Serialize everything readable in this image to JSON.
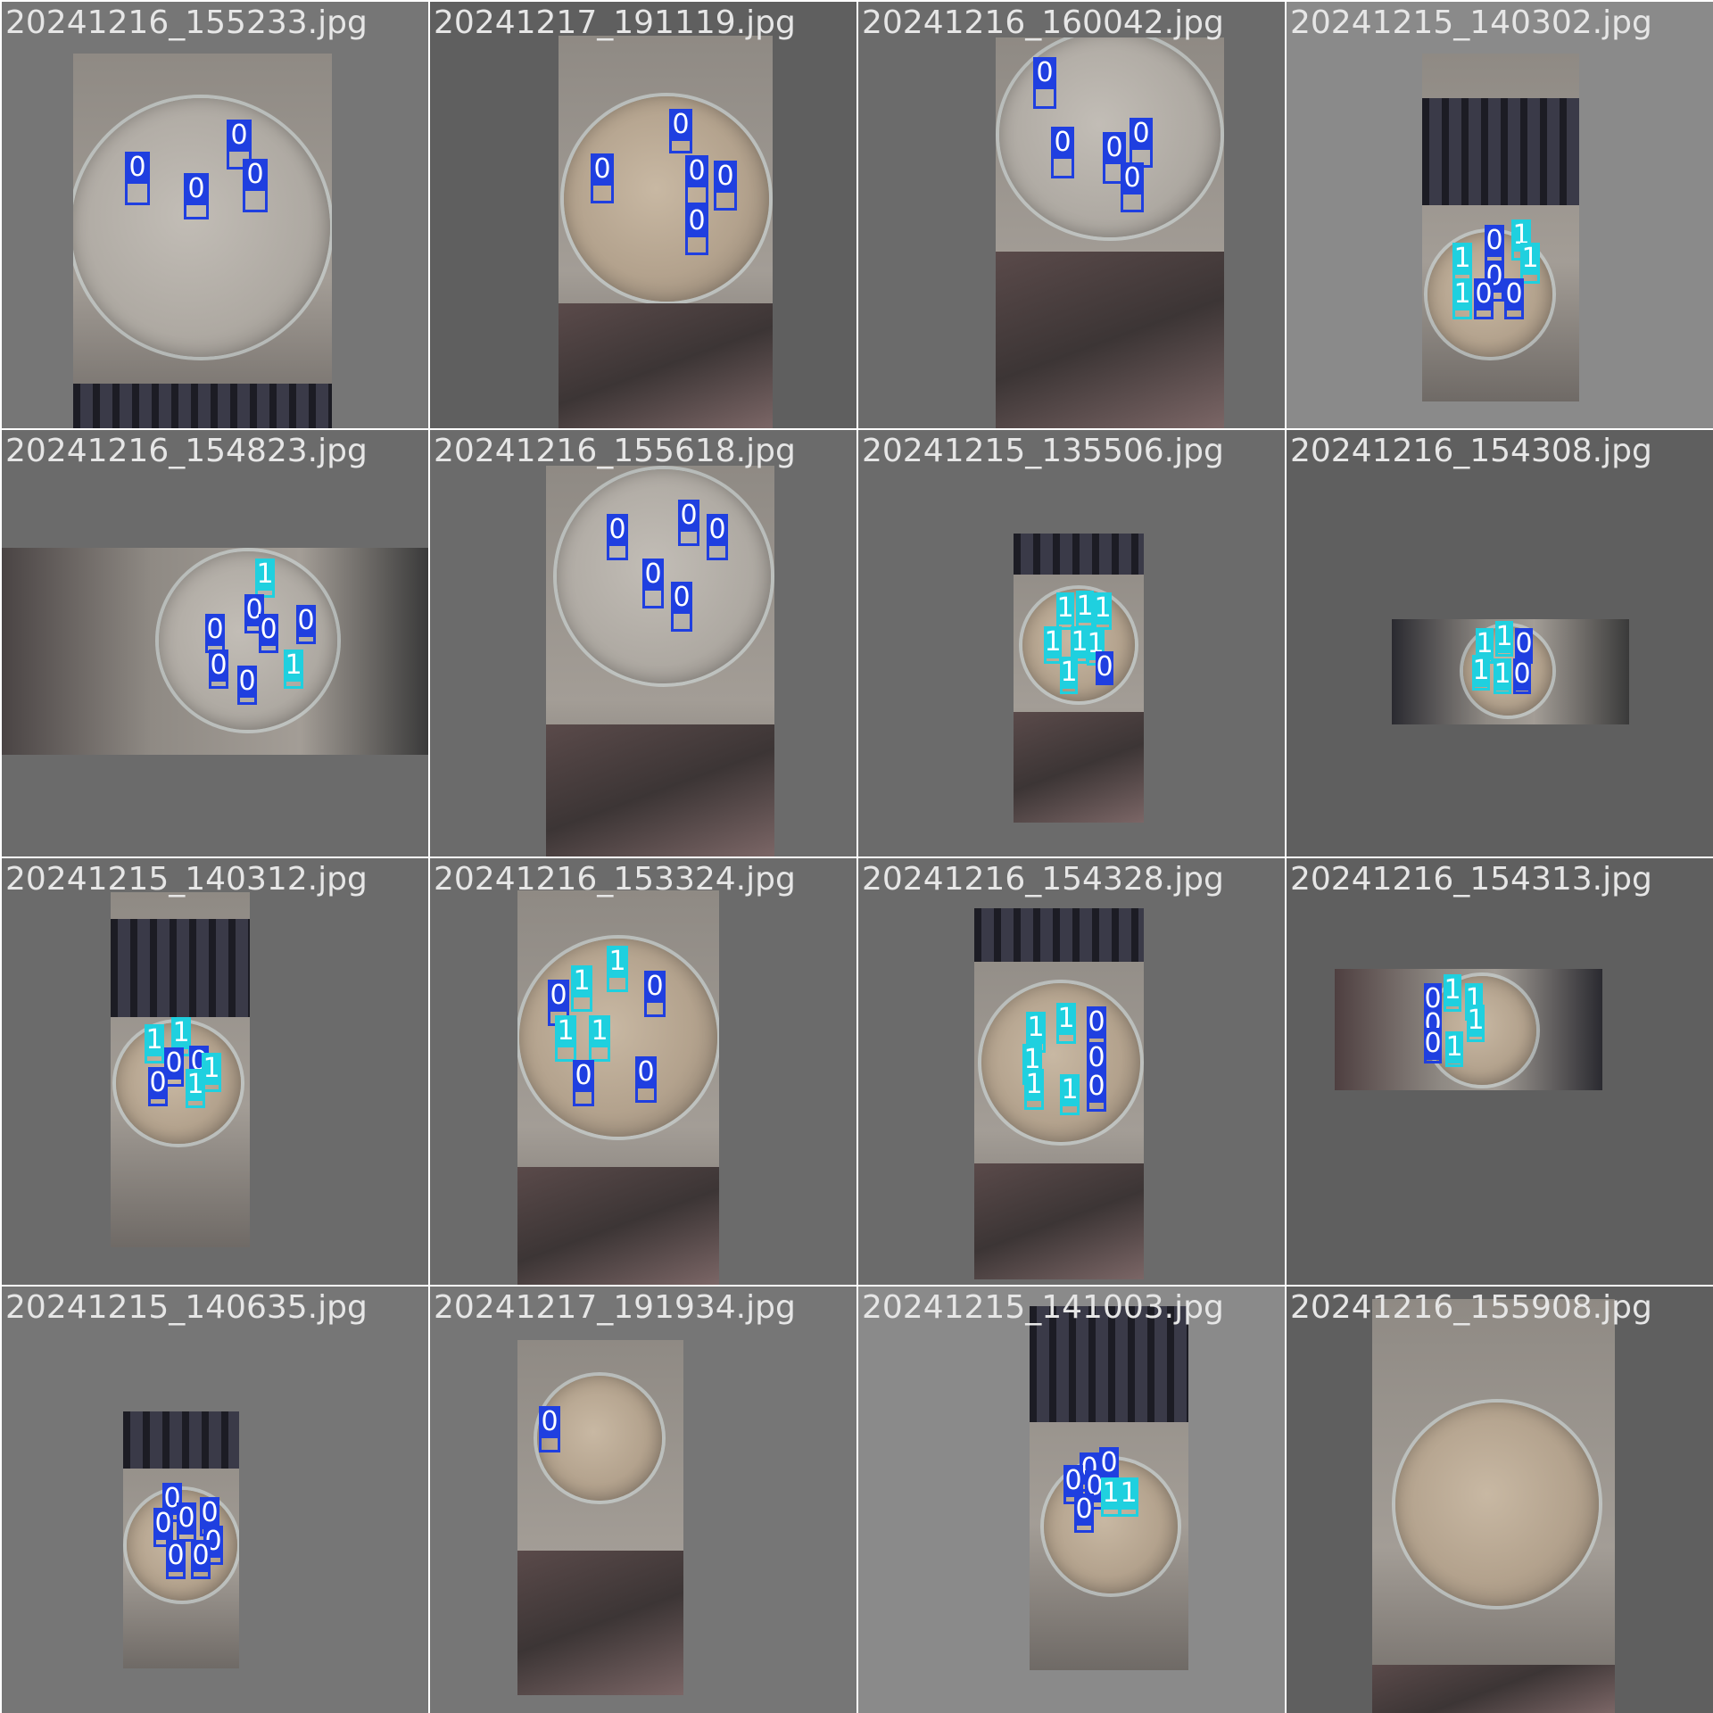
{
  "colors": {
    "class0": "#1f3fe0",
    "class1": "#1fd0df",
    "label_text": "#e6e6e6"
  },
  "tiles": [
    {
      "filename": "20241216_155233.jpg",
      "boxes": [
        {
          "cls": "0"
        },
        {
          "cls": "0"
        },
        {
          "cls": "0"
        },
        {
          "cls": "0"
        }
      ]
    },
    {
      "filename": "20241217_191119.jpg",
      "boxes": [
        {
          "cls": "0"
        },
        {
          "cls": "0"
        },
        {
          "cls": "0"
        },
        {
          "cls": "0"
        },
        {
          "cls": "0"
        }
      ]
    },
    {
      "filename": "20241216_160042.jpg",
      "boxes": [
        {
          "cls": "0"
        },
        {
          "cls": "0"
        },
        {
          "cls": "0"
        },
        {
          "cls": "0"
        },
        {
          "cls": "0"
        }
      ]
    },
    {
      "filename": "20241215_140302.jpg",
      "boxes": [
        {
          "cls": "1"
        },
        {
          "cls": "0"
        },
        {
          "cls": "1"
        },
        {
          "cls": "0"
        },
        {
          "cls": "1"
        },
        {
          "cls": "1"
        },
        {
          "cls": "0"
        },
        {
          "cls": "0"
        }
      ]
    },
    {
      "filename": "20241216_154823.jpg",
      "boxes": [
        {
          "cls": "1"
        },
        {
          "cls": "0"
        },
        {
          "cls": "0"
        },
        {
          "cls": "0"
        },
        {
          "cls": "0"
        },
        {
          "cls": "0"
        },
        {
          "cls": "1"
        },
        {
          "cls": "0"
        }
      ]
    },
    {
      "filename": "20241216_155618.jpg",
      "boxes": [
        {
          "cls": "0"
        },
        {
          "cls": "0"
        },
        {
          "cls": "0"
        },
        {
          "cls": "0"
        },
        {
          "cls": "0"
        }
      ]
    },
    {
      "filename": "20241215_135506.jpg",
      "boxes": [
        {
          "cls": "1"
        },
        {
          "cls": "1"
        },
        {
          "cls": "1"
        },
        {
          "cls": "1"
        },
        {
          "cls": "1"
        },
        {
          "cls": "1"
        },
        {
          "cls": "1"
        },
        {
          "cls": "0"
        }
      ]
    },
    {
      "filename": "20241216_154308.jpg",
      "boxes": [
        {
          "cls": "1"
        },
        {
          "cls": "1"
        },
        {
          "cls": "0"
        },
        {
          "cls": "1"
        },
        {
          "cls": "1"
        },
        {
          "cls": "0"
        }
      ]
    },
    {
      "filename": "20241215_140312.jpg",
      "boxes": [
        {
          "cls": "1"
        },
        {
          "cls": "1"
        },
        {
          "cls": "0"
        },
        {
          "cls": "0"
        },
        {
          "cls": "0"
        },
        {
          "cls": "1"
        },
        {
          "cls": "1"
        }
      ]
    },
    {
      "filename": "20241216_153324.jpg",
      "boxes": [
        {
          "cls": "0"
        },
        {
          "cls": "1"
        },
        {
          "cls": "1"
        },
        {
          "cls": "0"
        },
        {
          "cls": "1"
        },
        {
          "cls": "1"
        },
        {
          "cls": "0"
        },
        {
          "cls": "0"
        }
      ]
    },
    {
      "filename": "20241216_154328.jpg",
      "boxes": [
        {
          "cls": "1"
        },
        {
          "cls": "1"
        },
        {
          "cls": "0"
        },
        {
          "cls": "1"
        },
        {
          "cls": "0"
        },
        {
          "cls": "1"
        },
        {
          "cls": "1"
        },
        {
          "cls": "0"
        }
      ]
    },
    {
      "filename": "20241216_154313.jpg",
      "boxes": [
        {
          "cls": "1"
        },
        {
          "cls": "0"
        },
        {
          "cls": "1"
        },
        {
          "cls": "0"
        },
        {
          "cls": "1"
        },
        {
          "cls": "0"
        },
        {
          "cls": "1"
        }
      ]
    },
    {
      "filename": "20241215_140635.jpg",
      "boxes": [
        {
          "cls": "0"
        },
        {
          "cls": "0"
        },
        {
          "cls": "0"
        },
        {
          "cls": "0"
        },
        {
          "cls": "0"
        },
        {
          "cls": "0"
        },
        {
          "cls": "0"
        }
      ]
    },
    {
      "filename": "20241217_191934.jpg",
      "boxes": [
        {
          "cls": "0"
        }
      ]
    },
    {
      "filename": "20241215_141003.jpg",
      "boxes": [
        {
          "cls": "0"
        },
        {
          "cls": "0"
        },
        {
          "cls": "0"
        },
        {
          "cls": "0"
        },
        {
          "cls": "0"
        },
        {
          "cls": "1"
        },
        {
          "cls": "1"
        }
      ]
    },
    {
      "filename": "20241216_155908.jpg",
      "boxes": []
    }
  ]
}
